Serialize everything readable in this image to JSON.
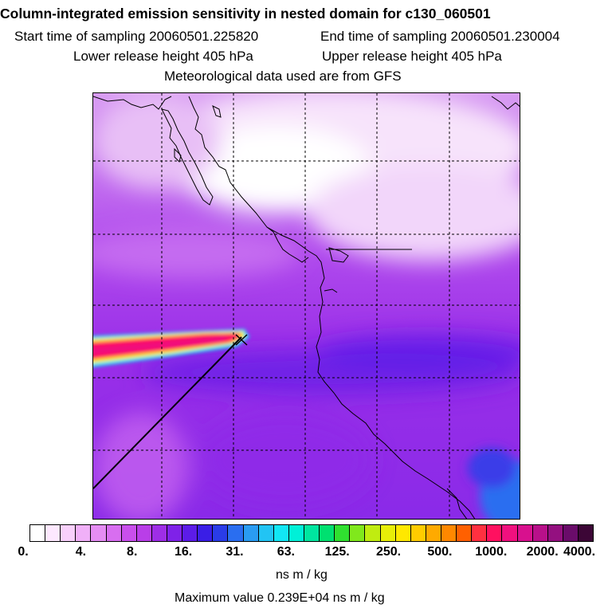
{
  "header": {
    "title": "Column-integrated emission sensitivity in nested domain for c130_060501",
    "start_time": "Start time of sampling 20060501.225820",
    "end_time": "End time of sampling 20060501.230004",
    "lower_release": "Lower release height  405 hPa",
    "upper_release": "Upper release height  405 hPa",
    "met_source": "Meteorological data used are from GFS"
  },
  "chart_data": {
    "type": "heatmap",
    "title": "Column-integrated emission sensitivity in nested domain for c130_060501",
    "units": "ns m / kg",
    "scale": "logarithmic",
    "colorbar_ticks": [
      "0.",
      "4.",
      "8.",
      "16.",
      "31.",
      "63.",
      "125.",
      "250.",
      "500.",
      "1000.",
      "2000.",
      "4000."
    ],
    "colorbar_tick_values": [
      0,
      4,
      8,
      16,
      31,
      63,
      125,
      250,
      500,
      1000,
      2000,
      4000
    ],
    "colorbar_colors": [
      "#ffffff",
      "#fde8fe",
      "#f8d0fb",
      "#f0b0f8",
      "#e58df3",
      "#d86ef0",
      "#c94fec",
      "#b93ee8",
      "#9e2ee6",
      "#7f22e8",
      "#5c1ce8",
      "#3a1ee6",
      "#2a3ce8",
      "#2a6ef0",
      "#2a9cf2",
      "#22c4f4",
      "#12e6f4",
      "#00f0d8",
      "#00e6a0",
      "#00e070",
      "#30e030",
      "#80e81c",
      "#c0ec10",
      "#e8ee08",
      "#ffe800",
      "#ffcc00",
      "#ffaa00",
      "#ff8800",
      "#ff6000",
      "#ff3040",
      "#ff1060",
      "#f0107e",
      "#d8108e",
      "#b8108a",
      "#941080",
      "#6a0c6a",
      "#3c0636"
    ],
    "maximum_value_text": "Maximum value  0.239E+04 ns m / kg",
    "max_value": 2390,
    "features": [
      "Coastline map with dashed lat/lon grid",
      "Plume of high sensitivity (>1000 ns m/kg) extending west from the receptor",
      "Flight track line running southwest from the receptor"
    ]
  }
}
